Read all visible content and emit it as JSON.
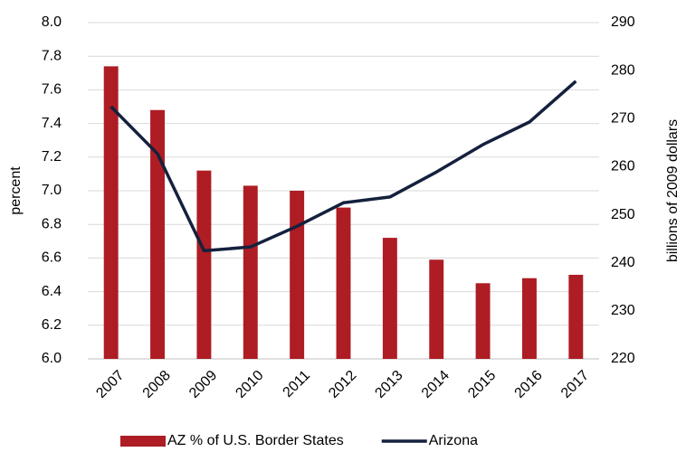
{
  "chart_data": {
    "type": "bar_line",
    "categories": [
      "2007",
      "2008",
      "2009",
      "2010",
      "2011",
      "2012",
      "2013",
      "2014",
      "2015",
      "2016",
      "2017"
    ],
    "series": [
      {
        "name": "AZ % of U.S. Border States",
        "type": "bar",
        "color": "#ae1c24",
        "values": [
          7.74,
          7.48,
          7.12,
          7.03,
          7.0,
          6.9,
          6.72,
          6.59,
          6.45,
          6.48,
          6.5
        ]
      },
      {
        "name": "Arizona",
        "type": "line",
        "axis": "y2",
        "color": "#14213d",
        "values": [
          272.5,
          262.7,
          242.5,
          243.3,
          247.6,
          252.5,
          253.7,
          258.9,
          264.6,
          269.3,
          277.8
        ]
      }
    ],
    "ylabel": "percent",
    "y2label": "billions of 2009 dollars",
    "ylim": [
      6.0,
      8.0
    ],
    "yticks": [
      {
        "value": 6.0,
        "label": "6.0"
      },
      6.2,
      6.4,
      6.6,
      6.8,
      {
        "value": 7.0,
        "label": "7.0"
      },
      7.2,
      7.4,
      7.6,
      7.8,
      {
        "value": 8.0,
        "label": "8.0"
      }
    ],
    "y2lim": [
      220,
      290
    ],
    "y2ticks": [
      220,
      230,
      240,
      250,
      260,
      270,
      280,
      290
    ],
    "grid": true,
    "legend": "bottom"
  }
}
